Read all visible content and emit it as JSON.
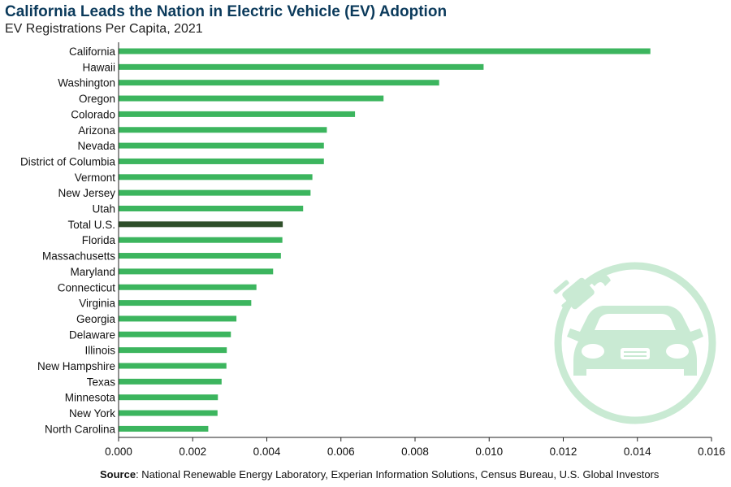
{
  "header": {
    "title": "California Leads the Nation in Electric Vehicle (EV) Adoption",
    "subtitle": "EV Registrations Per Capita, 2021"
  },
  "footer": {
    "source_label": "Source",
    "source_text": ": National Renewable Energy Laboratory, Experian Information Solutions, Census Bureau, U.S. Global Investors"
  },
  "colors": {
    "bar": "#3cb55e",
    "highlight_bar": "#2f4f2a",
    "axis": "#222222",
    "icon": "#c9ead3"
  },
  "icon": "ev-plug-car-icon",
  "chart_data": {
    "type": "bar",
    "orientation": "horizontal",
    "title": "California Leads the Nation in Electric Vehicle (EV) Adoption",
    "subtitle": "EV Registrations Per Capita, 2021",
    "categories": [
      "California",
      "Hawaii",
      "Washington",
      "Oregon",
      "Colorado",
      "Arizona",
      "Nevada",
      "District of Columbia",
      "Vermont",
      "New Jersey",
      "Utah",
      "Total U.S.",
      "Florida",
      "Massachusetts",
      "Maryland",
      "Connecticut",
      "Virginia",
      "Georgia",
      "Delaware",
      "Illinois",
      "New Hampshire",
      "Texas",
      "Minnesota",
      "New York",
      "North Carolina"
    ],
    "values": [
      0.01435,
      0.00985,
      0.00865,
      0.00715,
      0.00638,
      0.00562,
      0.00554,
      0.00554,
      0.00523,
      0.00518,
      0.00498,
      0.00443,
      0.00442,
      0.00438,
      0.00417,
      0.00372,
      0.00358,
      0.00318,
      0.00303,
      0.00292,
      0.00291,
      0.00278,
      0.00268,
      0.00267,
      0.00242
    ],
    "highlight": "Total U.S.",
    "xlim": [
      0,
      0.016
    ],
    "xticks": [
      "0.000",
      "0.002",
      "0.004",
      "0.006",
      "0.008",
      "0.010",
      "0.012",
      "0.014",
      "0.016"
    ],
    "xlabel": "",
    "ylabel": "",
    "grid": false
  }
}
